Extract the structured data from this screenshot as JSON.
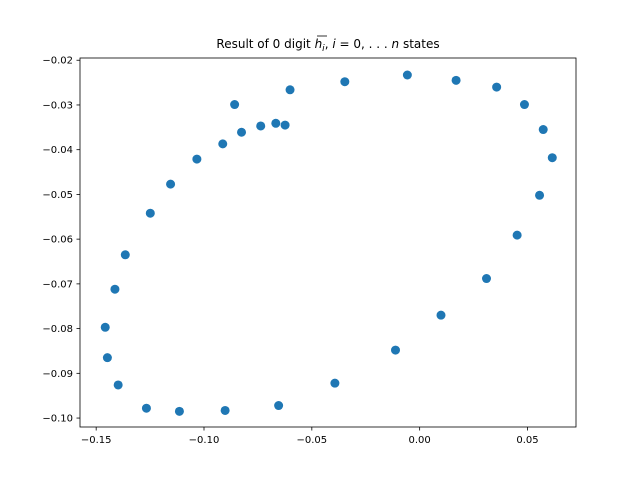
{
  "chart_data": {
    "type": "scatter",
    "title": "Result of 0 digit h̅ᵢ, i = 0, . . . n states",
    "xlabel": "",
    "ylabel": "",
    "xlim": [
      -0.1575,
      0.0725
    ],
    "ylim": [
      -0.102,
      -0.0195
    ],
    "xticks": [
      -0.15,
      -0.1,
      -0.05,
      0.0,
      0.05
    ],
    "xtick_labels": [
      "−0.15",
      "−0.10",
      "−0.05",
      "0.00",
      "0.05"
    ],
    "yticks": [
      -0.02,
      -0.03,
      -0.04,
      -0.05,
      -0.06,
      -0.07,
      -0.08,
      -0.09,
      -0.1
    ],
    "ytick_labels": [
      "−0.02",
      "−0.03",
      "−0.04",
      "−0.05",
      "−0.06",
      "−0.07",
      "−0.08",
      "−0.09",
      "−0.10"
    ],
    "grid": false,
    "marker_color": "#1f77b4",
    "points": [
      {
        "x": -0.0057,
        "y": -0.0233
      },
      {
        "x": 0.0169,
        "y": -0.0245
      },
      {
        "x": 0.0357,
        "y": -0.026
      },
      {
        "x": 0.0486,
        "y": -0.0299
      },
      {
        "x": 0.0573,
        "y": -0.0355
      },
      {
        "x": 0.0615,
        "y": -0.0418
      },
      {
        "x": 0.0556,
        "y": -0.0502
      },
      {
        "x": 0.0452,
        "y": -0.0591
      },
      {
        "x": 0.031,
        "y": -0.0688
      },
      {
        "x": 0.0099,
        "y": -0.077
      },
      {
        "x": -0.0112,
        "y": -0.0848
      },
      {
        "x": -0.0393,
        "y": -0.0922
      },
      {
        "x": -0.0654,
        "y": -0.0972
      },
      {
        "x": -0.0902,
        "y": -0.0983
      },
      {
        "x": -0.1114,
        "y": -0.0985
      },
      {
        "x": -0.1267,
        "y": -0.0978
      },
      {
        "x": -0.1398,
        "y": -0.0926
      },
      {
        "x": -0.1448,
        "y": -0.0865
      },
      {
        "x": -0.1458,
        "y": -0.0797
      },
      {
        "x": -0.1413,
        "y": -0.0712
      },
      {
        "x": -0.1365,
        "y": -0.0635
      },
      {
        "x": -0.1249,
        "y": -0.0542
      },
      {
        "x": -0.1155,
        "y": -0.0477
      },
      {
        "x": -0.1033,
        "y": -0.0421
      },
      {
        "x": -0.0913,
        "y": -0.0387
      },
      {
        "x": -0.0826,
        "y": -0.0361
      },
      {
        "x": -0.0737,
        "y": -0.0347
      },
      {
        "x": -0.0667,
        "y": -0.0341
      },
      {
        "x": -0.0624,
        "y": -0.0345
      },
      {
        "x": -0.0601,
        "y": -0.0266
      },
      {
        "x": -0.0347,
        "y": -0.0248
      },
      {
        "x": -0.0858,
        "y": -0.0299
      }
    ]
  }
}
